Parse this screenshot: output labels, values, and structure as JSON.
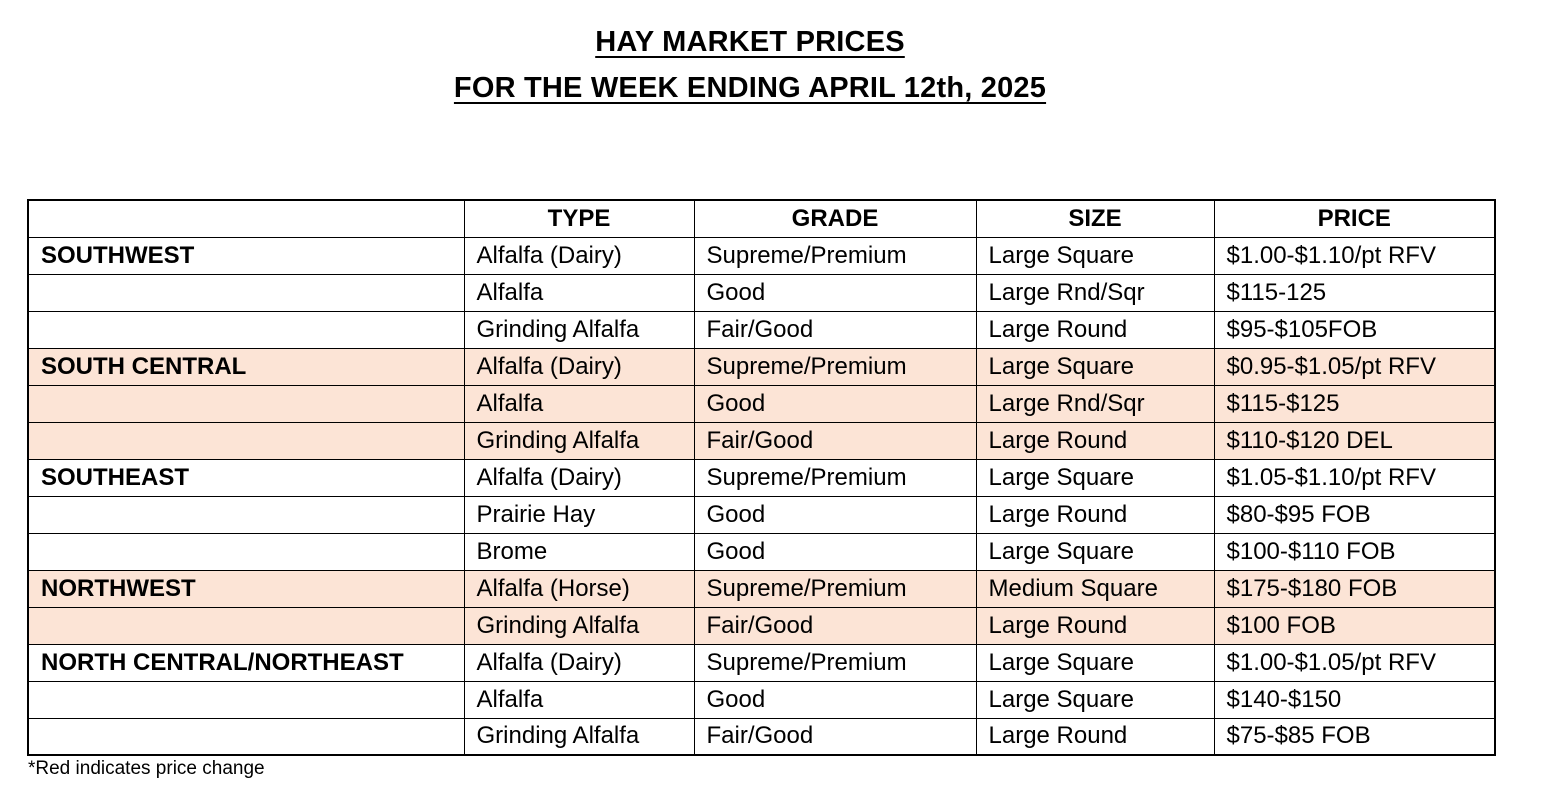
{
  "title": {
    "line1": "HAY MARKET PRICES",
    "line2": "FOR THE WEEK ENDING APRIL 12th, 2025"
  },
  "table": {
    "headers": [
      "",
      "TYPE",
      "GRADE",
      "SIZE",
      "PRICE"
    ],
    "rows": [
      {
        "region": "SOUTHWEST",
        "type": "Alfalfa (Dairy)",
        "grade": "Supreme/Premium",
        "size": "Large Square",
        "price": "$1.00-$1.10/pt RFV",
        "highlight": false
      },
      {
        "region": "",
        "type": "Alfalfa",
        "grade": "Good",
        "size": "Large Rnd/Sqr",
        "price": "$115-125",
        "highlight": false
      },
      {
        "region": "",
        "type": "Grinding Alfalfa",
        "grade": "Fair/Good",
        "size": "Large Round",
        "price": "$95-$105FOB",
        "highlight": false
      },
      {
        "region": "SOUTH CENTRAL",
        "type": "Alfalfa (Dairy)",
        "grade": "Supreme/Premium",
        "size": "Large Square",
        "price": "$0.95-$1.05/pt RFV",
        "highlight": true
      },
      {
        "region": "",
        "type": "Alfalfa",
        "grade": "Good",
        "size": "Large Rnd/Sqr",
        "price": "$115-$125",
        "highlight": true
      },
      {
        "region": "",
        "type": "Grinding Alfalfa",
        "grade": "Fair/Good",
        "size": "Large Round",
        "price": "$110-$120 DEL",
        "highlight": true
      },
      {
        "region": "SOUTHEAST",
        "type": "Alfalfa (Dairy)",
        "grade": "Supreme/Premium",
        "size": "Large Square",
        "price": "$1.05-$1.10/pt RFV",
        "highlight": false
      },
      {
        "region": "",
        "type": "Prairie Hay",
        "grade": "Good",
        "size": "Large Round",
        "price": "$80-$95 FOB",
        "highlight": false
      },
      {
        "region": "",
        "type": "Brome",
        "grade": "Good",
        "size": "Large Square",
        "price": "$100-$110 FOB",
        "highlight": false
      },
      {
        "region": "NORTHWEST",
        "type": "Alfalfa (Horse)",
        "grade": "Supreme/Premium",
        "size": "Medium Square",
        "price": "$175-$180 FOB",
        "highlight": true
      },
      {
        "region": "",
        "type": "Grinding Alfalfa",
        "grade": "Fair/Good",
        "size": "Large Round",
        "price": "$100 FOB",
        "highlight": true
      },
      {
        "region": "NORTH CENTRAL/NORTHEAST",
        "type": "Alfalfa (Dairy)",
        "grade": "Supreme/Premium",
        "size": "Large Square",
        "price": "$1.00-$1.05/pt RFV",
        "highlight": false
      },
      {
        "region": "",
        "type": "Alfalfa",
        "grade": "Good",
        "size": "Large Square",
        "price": "$140-$150",
        "highlight": false
      },
      {
        "region": "",
        "type": "Grinding Alfalfa",
        "grade": "Fair/Good",
        "size": "Large Round",
        "price": "$75-$85 FOB",
        "highlight": false
      }
    ]
  },
  "footnote": "*Red indicates price change",
  "colors": {
    "highlight_row": "#fce4d6",
    "border": "#000000",
    "text": "#000000"
  }
}
